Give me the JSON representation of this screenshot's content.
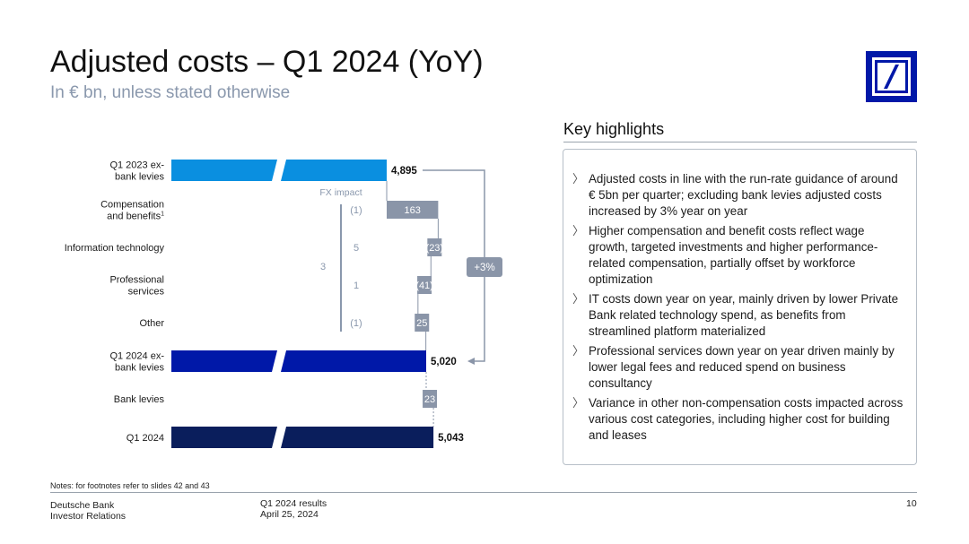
{
  "header": {
    "title": "Adjusted costs – Q1 2024 (YoY)",
    "subtitle": "In € bn, unless stated otherwise"
  },
  "logo": {
    "name": "deutsche-bank-logo",
    "color": "#0018a8"
  },
  "chart_data": {
    "type": "waterfall",
    "categories": [
      "Q1 2023 ex-bank levies",
      "Compensation and benefits",
      "Information technology",
      "Professional services",
      "Other",
      "Q1 2024 ex-bank levies",
      "Bank levies",
      "Q1 2024"
    ],
    "category_lines": [
      [
        "Q1 2023 ex-",
        "bank levies"
      ],
      [
        "Compensation",
        "and benefits"
      ],
      [
        "Information technology"
      ],
      [
        "Professional",
        "services"
      ],
      [
        "Other"
      ],
      [
        "Q1 2024 ex-",
        "bank levies"
      ],
      [
        "Bank levies"
      ],
      [
        "Q1 2024"
      ]
    ],
    "footnote_marks": [
      "",
      "1",
      "",
      "",
      "",
      "",
      "",
      ""
    ],
    "bars": [
      {
        "kind": "total",
        "value": 4895,
        "label": "4,895",
        "color": "#0a8fe0"
      },
      {
        "kind": "delta",
        "value": 163,
        "label": "163",
        "color": "#8a95a8"
      },
      {
        "kind": "delta",
        "value": -23,
        "label": "(23)",
        "color": "#8a95a8"
      },
      {
        "kind": "delta",
        "value": -41,
        "label": "(41)",
        "color": "#8a95a8"
      },
      {
        "kind": "delta",
        "value": 25,
        "label": "25",
        "color": "#8a95a8"
      },
      {
        "kind": "total",
        "value": 5020,
        "label": "5,020",
        "color": "#0018a8"
      },
      {
        "kind": "delta",
        "value": 23,
        "label": "23",
        "color": "#8a95a8"
      },
      {
        "kind": "total",
        "value": 5043,
        "label": "5,043",
        "color": "#0a1e5c"
      }
    ],
    "axis_break": true,
    "fx_impact": {
      "title": "FX impact",
      "values": [
        "(1)",
        "5",
        "1",
        "(1)"
      ],
      "total": "3",
      "color": "#8a98ad"
    },
    "growth_annotation": {
      "label": "+3%",
      "from": "Q1 2023 ex-bank levies",
      "to": "Q1 2024 ex-bank levies"
    }
  },
  "highlights": {
    "title": "Key highlights",
    "items": [
      "Adjusted costs in line with the run-rate guidance of around € 5bn per quarter; excluding bank levies adjusted costs increased by 3% year on year",
      "Higher compensation and benefit costs reflect wage growth, targeted investments and higher performance-related compensation, partially offset by workforce optimization",
      "IT costs down year on year, mainly driven by lower Private Bank related technology spend, as benefits from streamlined platform materialized",
      "Professional services down year on year driven mainly by lower legal fees and reduced spend on business consultancy",
      "Variance in other non-compensation costs impacted across various cost categories, including higher cost for building and leases"
    ]
  },
  "footer": {
    "notes": "Notes: for footnotes refer to slides 42 and 43",
    "company_line1": "Deutsche Bank",
    "company_line2": "Investor Relations",
    "doc_line1": "Q1 2024 results",
    "doc_line2": "April 25, 2024",
    "page_number": "10"
  }
}
